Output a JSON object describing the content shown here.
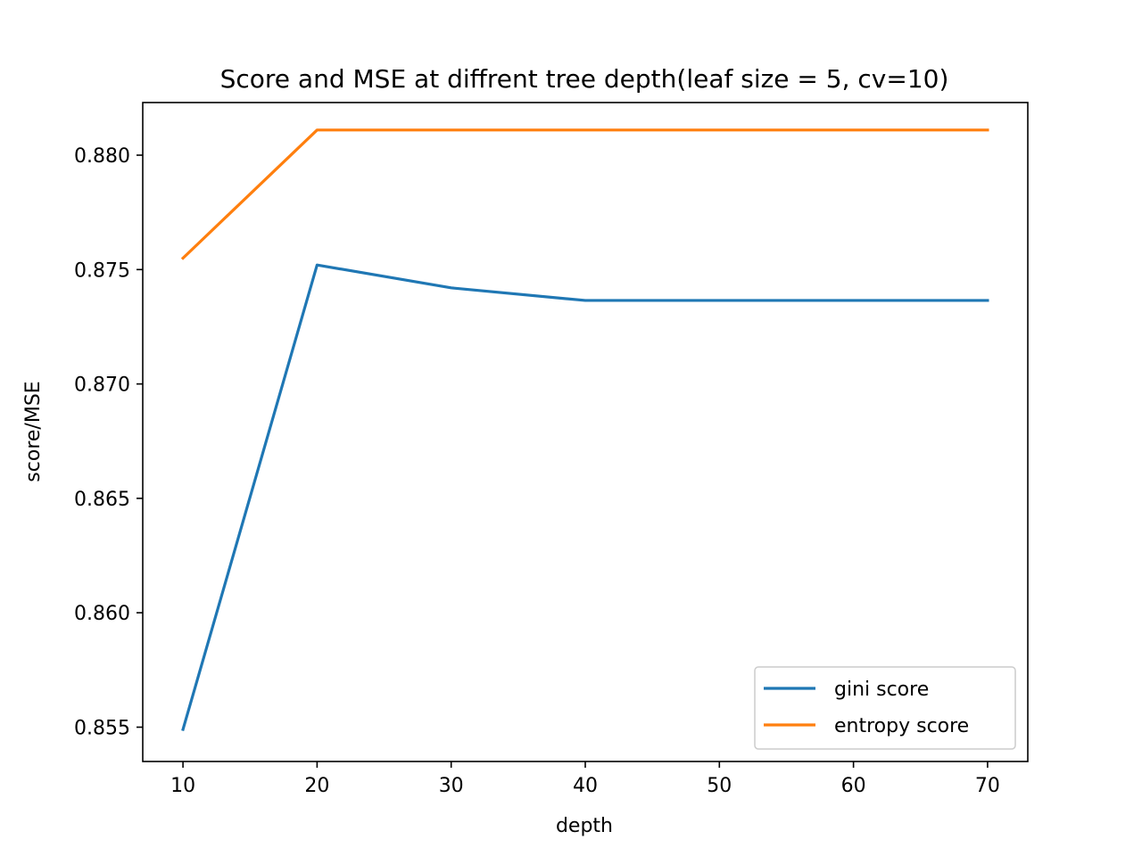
{
  "chart_data": {
    "type": "line",
    "title": "Score and MSE at diffrent tree depth(leaf size = 5, cv=10)",
    "xlabel": "depth",
    "ylabel": "score/MSE",
    "x": [
      10,
      20,
      30,
      40,
      50,
      60,
      70
    ],
    "xlim": [
      7,
      73
    ],
    "ylim": [
      0.8535,
      0.8823
    ],
    "xticks": [
      10,
      20,
      30,
      40,
      50,
      60,
      70
    ],
    "yticks": [
      0.855,
      0.86,
      0.865,
      0.87,
      0.875,
      0.88
    ],
    "ytick_labels": [
      "0.855",
      "0.860",
      "0.865",
      "0.870",
      "0.875",
      "0.880"
    ],
    "grid": false,
    "legend_position": "lower-right",
    "series": [
      {
        "name": "gini score",
        "color": "#1f77b4",
        "values": [
          0.8549,
          0.8752,
          0.8742,
          0.87365,
          0.87365,
          0.87365,
          0.87365
        ]
      },
      {
        "name": "entropy score",
        "color": "#ff7f0e",
        "values": [
          0.8755,
          0.8811,
          0.8811,
          0.8811,
          0.8811,
          0.8811,
          0.8811
        ]
      }
    ]
  }
}
